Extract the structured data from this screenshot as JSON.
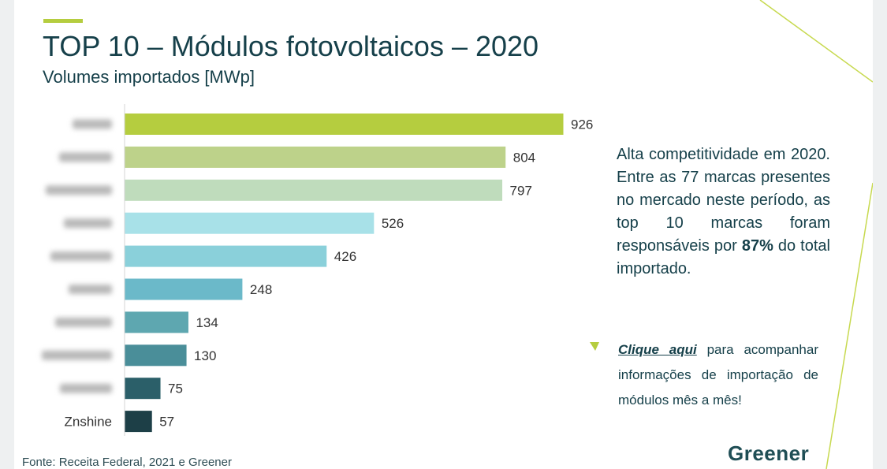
{
  "header": {
    "title": "TOP 10 – Módulos fotovoltaicos – 2020",
    "subtitle": "Volumes importados [MWp]"
  },
  "chart_data": {
    "type": "bar",
    "orientation": "horizontal",
    "title": "TOP 10 – Módulos fotovoltaicos – 2020",
    "subtitle": "Volumes importados [MWp]",
    "categories": [
      "",
      "",
      "",
      "",
      "",
      "",
      "",
      "",
      "",
      "Znshine"
    ],
    "values": [
      926,
      804,
      797,
      526,
      426,
      248,
      134,
      130,
      75,
      57
    ],
    "colors": [
      "#b5cd3f",
      "#bdd28a",
      "#bfdcbc",
      "#a8e1e8",
      "#8ad0da",
      "#6bb9c9",
      "#5ea7b0",
      "#4a8e99",
      "#2b5f69",
      "#1d3f47"
    ],
    "xlim": [
      0,
      926
    ],
    "grid": false,
    "legend": "none",
    "data_labels": true
  },
  "callout": {
    "text_before": "Alta competitividade em 2020. Entre as 77 marcas presentes no mercado neste período, as top 10 marcas foram responsáveis por ",
    "highlight": "87%",
    "text_after": " do total importado."
  },
  "link_block": {
    "link_text": "Clique aqui",
    "rest": " para acompanhar informações de importação de módulos mês a mês!"
  },
  "footer": {
    "source": "Fonte: Receita Federal, 2021 e Greener",
    "logo": "Greener"
  },
  "colors": {
    "accent": "#b5cd3f",
    "text_dark": "#16404a",
    "decor_line": "#c7d94f"
  }
}
